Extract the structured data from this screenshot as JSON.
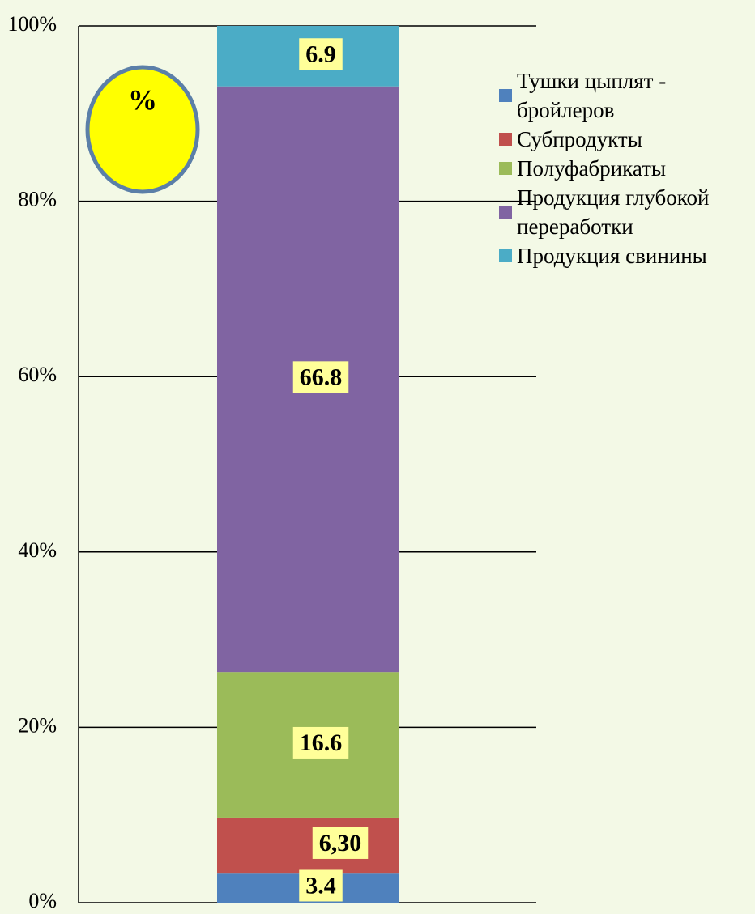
{
  "chart_data": {
    "type": "stacked_bar",
    "annotation": "%",
    "categories": [
      null
    ],
    "ylim": [
      0,
      100
    ],
    "yticks": [
      {
        "value": 0,
        "label": "0%"
      },
      {
        "value": 20,
        "label": "20%"
      },
      {
        "value": 40,
        "label": "40%"
      },
      {
        "value": 60,
        "label": "60%"
      },
      {
        "value": 80,
        "label": "80%"
      },
      {
        "value": 100,
        "label": "100%"
      }
    ],
    "grid": true,
    "legend": "right",
    "series": [
      {
        "name": "Тушки цыплят - бройлеров",
        "color": "#4f81bd",
        "values": [
          3.4
        ]
      },
      {
        "name": "Субпродукты",
        "color": "#c0504d",
        "values": [
          6.3
        ],
        "value_labels": [
          "6,30"
        ]
      },
      {
        "name": "Полуфабрикаты",
        "color": "#9bbb59",
        "values": [
          16.6
        ]
      },
      {
        "name": "Продукция глубокой переработки",
        "color": "#8064a2",
        "values": [
          66.8
        ]
      },
      {
        "name": "Продукция свинины",
        "color": "#4bacc6",
        "values": [
          6.9
        ]
      }
    ]
  }
}
